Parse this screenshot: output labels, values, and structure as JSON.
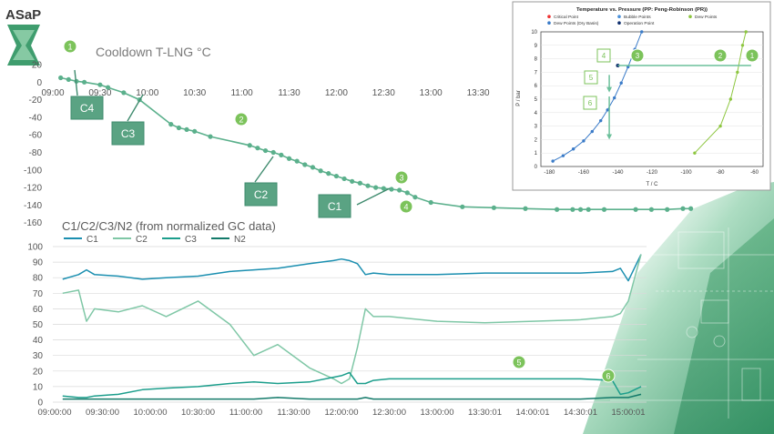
{
  "logo": {
    "text": "ASaP"
  },
  "colors": {
    "accent": "#5bb08c",
    "c1": "#1b8fb0",
    "c2": "#7fc7a6",
    "c3": "#1c9e8c",
    "n2": "#137a6a",
    "dew": "#8dc63f",
    "bubble": "#3a7bc8",
    "callout_fill": "#5aa383"
  },
  "cooldown": {
    "title": "Cooldown T-LNG °C",
    "yticks": [
      "20",
      "0",
      "-20",
      "-40",
      "-60",
      "-80",
      "-100",
      "-120",
      "-140",
      "-160"
    ],
    "xticks": [
      "09:00",
      "09:30",
      "10:00",
      "10:30",
      "11:00",
      "11:30",
      "12:00",
      "12:30",
      "13:00",
      "13:30"
    ],
    "callouts": [
      "C4",
      "C3",
      "C2",
      "C1"
    ],
    "markers": [
      "1",
      "2",
      "3",
      "4"
    ],
    "chart_data": {
      "type": "line",
      "title": "Cooldown T-LNG °C",
      "xlabel": "",
      "ylabel": "",
      "ylim": [
        -160,
        20
      ],
      "x_minutes_from_0900": [
        5,
        10,
        15,
        20,
        30,
        35,
        45,
        55,
        75,
        80,
        85,
        90,
        100,
        125,
        130,
        135,
        140,
        145,
        150,
        155,
        160,
        165,
        170,
        175,
        180,
        185,
        190,
        195,
        200,
        205,
        210,
        215,
        220,
        225,
        230,
        240,
        260,
        280,
        300,
        320,
        330,
        335,
        340,
        350,
        370,
        380,
        390,
        400,
        405
      ],
      "values": [
        5,
        3,
        1,
        0,
        -3,
        -6,
        -12,
        -20,
        -48,
        -52,
        -54,
        -56,
        -62,
        -72,
        -75,
        -78,
        -80,
        -83,
        -87,
        -90,
        -94,
        -97,
        -101,
        -104,
        -107,
        -110,
        -113,
        -115,
        -118,
        -120,
        -121,
        -122,
        -123,
        -126,
        -131,
        -137,
        -142,
        -143,
        -144,
        -145,
        -145,
        -145,
        -145,
        -145,
        -145,
        -145,
        -145,
        -144,
        -144
      ]
    }
  },
  "gc": {
    "title": "C1/C2/C3/N2 (from normalized GC data)",
    "legend": [
      "C1",
      "C2",
      "C3",
      "N2"
    ],
    "yticks": [
      "100",
      "90",
      "80",
      "70",
      "60",
      "50",
      "40",
      "30",
      "20",
      "10",
      "0"
    ],
    "xticks": [
      "09:00:00",
      "09:30:00",
      "10:00:00",
      "10:30:00",
      "11:00:00",
      "11:30:00",
      "12:00:00",
      "12:30:00",
      "13:00:00",
      "13:30:01",
      "14:00:01",
      "14:30:01",
      "15:00:01"
    ],
    "markers": [
      "5",
      "6"
    ],
    "chart_data": {
      "type": "line",
      "title": "C1/C2/C3/N2 (from normalized GC data)",
      "ylim": [
        0,
        100
      ],
      "x_minutes_from_0900": [
        5,
        15,
        20,
        25,
        40,
        55,
        70,
        90,
        110,
        125,
        140,
        160,
        175,
        180,
        185,
        190,
        195,
        200,
        210,
        240,
        270,
        300,
        330,
        350,
        355,
        360,
        368
      ],
      "series": [
        {
          "name": "C1",
          "values": [
            79,
            82,
            85,
            82,
            81,
            79,
            80,
            81,
            84,
            85,
            86,
            89,
            91,
            92,
            91,
            89,
            82,
            83,
            82,
            82,
            83,
            83,
            83,
            84,
            86,
            78,
            95
          ]
        },
        {
          "name": "C2",
          "values": [
            70,
            72,
            52,
            60,
            58,
            62,
            55,
            65,
            50,
            30,
            37,
            22,
            15,
            12,
            15,
            35,
            60,
            55,
            55,
            52,
            51,
            52,
            53,
            55,
            57,
            65,
            95
          ]
        },
        {
          "name": "C3",
          "values": [
            4,
            3,
            3,
            4,
            5,
            8,
            9,
            10,
            12,
            13,
            12,
            13,
            16,
            17,
            19,
            12,
            12,
            14,
            15,
            15,
            15,
            15,
            15,
            14,
            5,
            6,
            10
          ]
        },
        {
          "name": "N2",
          "values": [
            2,
            2,
            2,
            2,
            2,
            2,
            2,
            2,
            2,
            2,
            3,
            2,
            2,
            2,
            2,
            2,
            3,
            2,
            2,
            2,
            2,
            2,
            2,
            3,
            3,
            3,
            5
          ]
        }
      ]
    }
  },
  "inset": {
    "title": "Temperature vs. Pressure (PP: Peng-Robinson (PR))",
    "legend": [
      "Critical Point",
      "Bubble Points",
      "Dew Points",
      "Dew Points (Dry Basis)",
      "Operation Point"
    ],
    "ylabel": "P / bar",
    "xlabel": "T / C",
    "yticks": [
      "10",
      "9",
      "8",
      "7",
      "6",
      "5",
      "4",
      "3",
      "2",
      "1",
      "0"
    ],
    "xticks": [
      "-180",
      "-160",
      "-140",
      "-120",
      "-100",
      "-80",
      "-60"
    ],
    "markers": [
      "1",
      "2",
      "3",
      "4",
      "5",
      "6"
    ],
    "chart_data": {
      "type": "line",
      "title": "Temperature vs. Pressure (PP: Peng-Robinson (PR))",
      "xlabel": "T / C",
      "ylabel": "P / bar",
      "xlim": [
        -185,
        -55
      ],
      "ylim": [
        0,
        10
      ],
      "series": [
        {
          "name": "Bubble Points",
          "x": [
            -178,
            -172,
            -166,
            -160,
            -155,
            -150,
            -146,
            -142,
            -138,
            -134,
            -130,
            -126
          ],
          "y": [
            0.4,
            0.8,
            1.3,
            1.9,
            2.6,
            3.4,
            4.2,
            5.1,
            6.2,
            7.4,
            8.7,
            10
          ]
        },
        {
          "name": "Dew Points",
          "x": [
            -95,
            -80,
            -74,
            -70,
            -67,
            -65
          ],
          "y": [
            1.0,
            3.0,
            5.0,
            7.0,
            9.0,
            10
          ]
        },
        {
          "name": "Operation Point",
          "x": [
            -140
          ],
          "y": [
            7.5
          ]
        }
      ]
    }
  }
}
